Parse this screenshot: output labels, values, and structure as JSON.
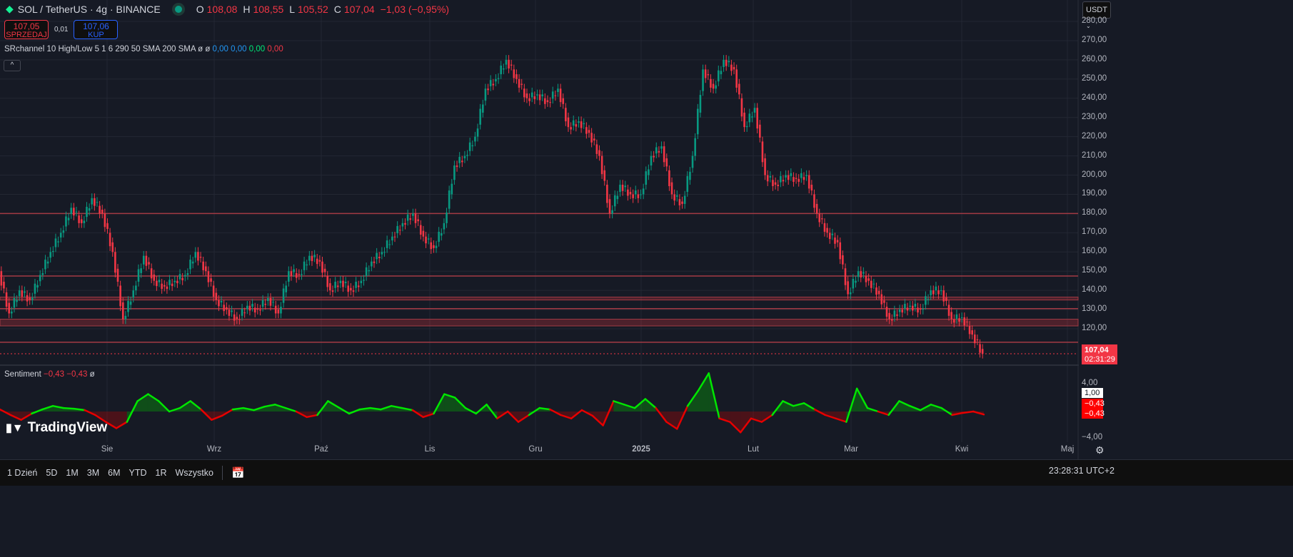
{
  "header": {
    "symbol": "SOL / TetherUS · 4g · BINANCE",
    "o_label": "O",
    "o": "108,08",
    "h_label": "H",
    "h": "108,55",
    "l_label": "L",
    "l": "105,52",
    "c_label": "C",
    "c": "107,04",
    "change": "−1,03 (−0,95%)"
  },
  "trade": {
    "sell_price": "107,05",
    "sell_label": "SPRZEDAJ",
    "spread": "0,01",
    "buy_price": "107,06",
    "buy_label": "KUP"
  },
  "indicator": {
    "name": "SRchannel 10 High/Low 5 1 6 290 50 SMA 200 SMA",
    "sym1": "ø",
    "sym2": "ø",
    "v1": "0,00",
    "v2": "0,00",
    "v3": "0,00",
    "v4": "0,00"
  },
  "sentiment": {
    "name": "Sentiment",
    "v1": "−0,43",
    "v2": "−0,43",
    "sym": "ø",
    "tag_white": "1,00",
    "tag_red1": "−0,43",
    "tag_red2": "−0,43"
  },
  "currency": "USDT",
  "last_price": "107,04",
  "countdown": "02:31:29",
  "bottom": {
    "ranges": [
      "1 Dzień",
      "5D",
      "1M",
      "3M",
      "6M",
      "YTD",
      "1R",
      "Wszystko"
    ],
    "clock": "23:28:31 UTC+2"
  },
  "watermark": "TradingView",
  "colors": {
    "up": "#089981",
    "down": "#f23645",
    "bg": "#161a25",
    "sent_pos": "#00e600",
    "sent_neg": "#e60000"
  },
  "chart_data": [
    {
      "type": "candlestick",
      "title": "SOL / TetherUS · 4g · BINANCE",
      "ylim": [
        100,
        285
      ],
      "yticks": [
        "120,00",
        "130,00",
        "140,00",
        "150,00",
        "160,00",
        "170,00",
        "180,00",
        "190,00",
        "200,00",
        "210,00",
        "220,00",
        "230,00",
        "240,00",
        "250,00",
        "260,00",
        "270,00",
        "280,00"
      ],
      "xticks": [
        "Sie",
        "Wrz",
        "Paź",
        "Lis",
        "Gru",
        "2025",
        "Lut",
        "Mar",
        "Kwi",
        "Maj"
      ],
      "closes": [
        150,
        128,
        140,
        135,
        148,
        160,
        170,
        183,
        175,
        188,
        180,
        160,
        125,
        140,
        158,
        145,
        142,
        145,
        148,
        160,
        150,
        135,
        130,
        125,
        132,
        130,
        136,
        128,
        150,
        148,
        158,
        155,
        140,
        145,
        140,
        145,
        155,
        160,
        168,
        175,
        180,
        168,
        162,
        175,
        205,
        210,
        220,
        245,
        250,
        260,
        250,
        240,
        242,
        238,
        245,
        225,
        228,
        222,
        210,
        180,
        195,
        190,
        190,
        210,
        215,
        190,
        185,
        210,
        255,
        245,
        260,
        255,
        225,
        235,
        200,
        195,
        200,
        198,
        200,
        180,
        170,
        165,
        138,
        150,
        145,
        138,
        125,
        130,
        132,
        130,
        140,
        140,
        125,
        126,
        117,
        107.04
      ],
      "levels": [
        180,
        147.5,
        130.5,
        113
      ],
      "zones": [
        [
          135,
          136.5
        ],
        [
          121.5,
          125
        ]
      ],
      "last": 107.04
    },
    {
      "type": "line",
      "title": "Sentiment",
      "ylim": [
        -5,
        6
      ],
      "yticks": [
        "4,00",
        "−4,00"
      ],
      "values": [
        0.3,
        -0.5,
        -1.2,
        -0.3,
        0.3,
        0.8,
        0.5,
        0.4,
        0.2,
        -0.5,
        -1.5,
        -2.4,
        -1.5,
        1.5,
        2.5,
        1.5,
        0,
        0.5,
        1.5,
        0.3,
        -1.2,
        -0.6,
        0.3,
        0.5,
        0.2,
        0.7,
        1,
        0.5,
        0,
        -0.8,
        -0.5,
        1.5,
        0.6,
        -0.3,
        0.3,
        0.5,
        0.3,
        0.8,
        0.5,
        0.2,
        -0.8,
        -0.3,
        2.5,
        2,
        0.5,
        -0.3,
        1,
        -1,
        0,
        -1.5,
        -0.5,
        0.5,
        0.3,
        -0.5,
        -1,
        0.2,
        -0.6,
        -2,
        1.5,
        1,
        0.5,
        1.8,
        0.5,
        -1.5,
        -2.5,
        0.8,
        3,
        5.5,
        -1,
        -1.5,
        -3,
        -1,
        -1.5,
        -0.5,
        1.5,
        0.8,
        1.2,
        0.3,
        -0.5,
        -1,
        -1.5,
        3.3,
        0.5,
        0,
        -0.5,
        1.5,
        0.8,
        0.2,
        1,
        0.5,
        -0.5,
        -0.2,
        0,
        -0.43
      ]
    }
  ]
}
